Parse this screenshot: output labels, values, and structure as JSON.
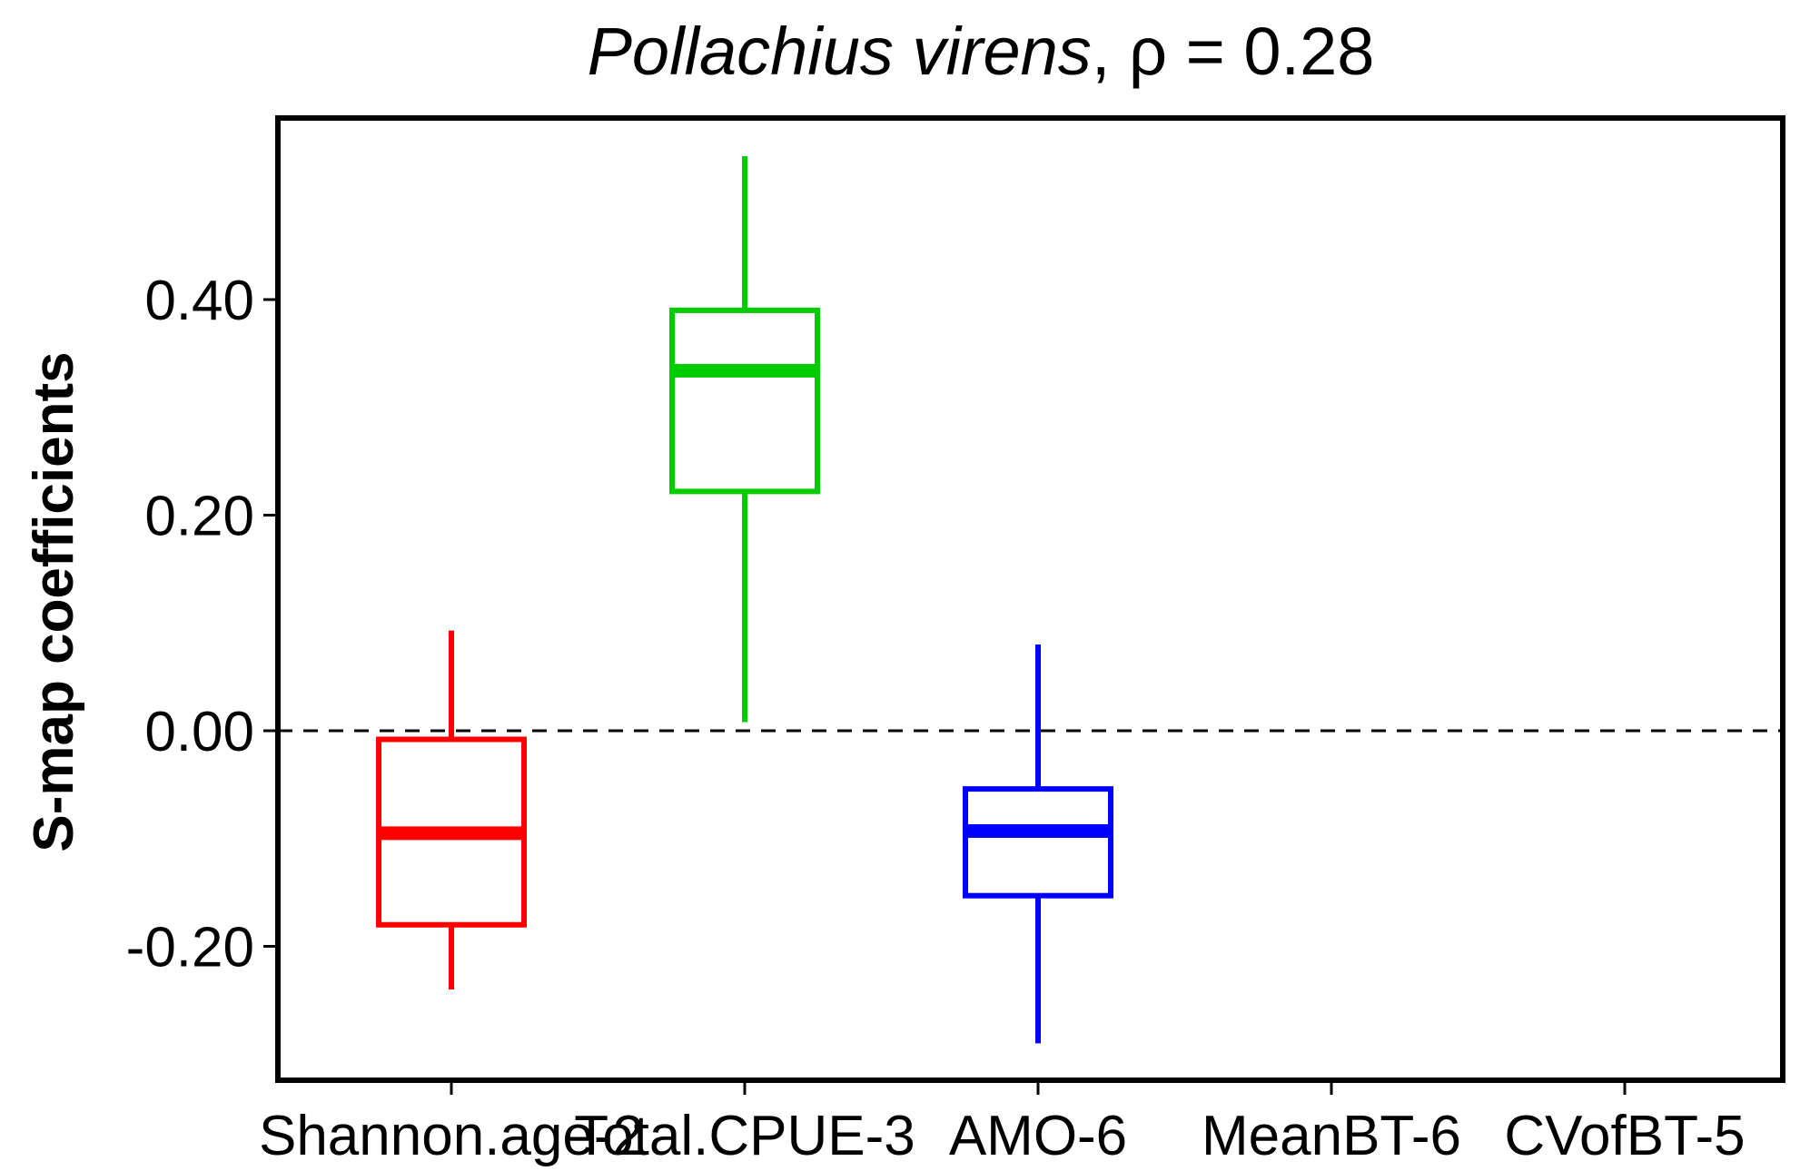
{
  "chart_data": {
    "type": "box",
    "title": {
      "species": "Pollachius virens",
      "suffix": ", ρ = 0.28"
    },
    "xlabel": "",
    "ylabel": "S-map coefficients",
    "categories": [
      "Shannon.age-2",
      "Total.CPUE-3",
      "AMO-6",
      "MeanBT-6",
      "CVofBT-5"
    ],
    "ylim": [
      -0.325,
      0.555
    ],
    "yticks": [
      -0.2,
      0.0,
      0.2,
      0.4
    ],
    "ytick_labels": [
      "-0.20",
      "0.00",
      "0.20",
      "0.40"
    ],
    "reference_line": {
      "y": 0.0,
      "style": "dashed"
    },
    "grid": false,
    "legend": "none",
    "boxes": [
      {
        "category": "Shannon.age-2",
        "whisker_low": -0.24,
        "q1": -0.18,
        "median": -0.095,
        "q3": -0.008,
        "whisker_high": 0.093,
        "color": "#ff0000"
      },
      {
        "category": "Total.CPUE-3",
        "whisker_low": 0.008,
        "q1": 0.222,
        "median": 0.334,
        "q3": 0.39,
        "whisker_high": 0.533,
        "color": "#00cc00"
      },
      {
        "category": "AMO-6",
        "whisker_low": -0.29,
        "q1": -0.153,
        "median": -0.093,
        "q3": -0.054,
        "whisker_high": 0.08,
        "color": "#0000ff"
      },
      {
        "category": "MeanBT-6",
        "whisker_low": null,
        "q1": null,
        "median": null,
        "q3": null,
        "whisker_high": null,
        "color": ""
      },
      {
        "category": "CVofBT-5",
        "whisker_low": null,
        "q1": null,
        "median": null,
        "q3": null,
        "whisker_high": null,
        "color": ""
      }
    ]
  }
}
